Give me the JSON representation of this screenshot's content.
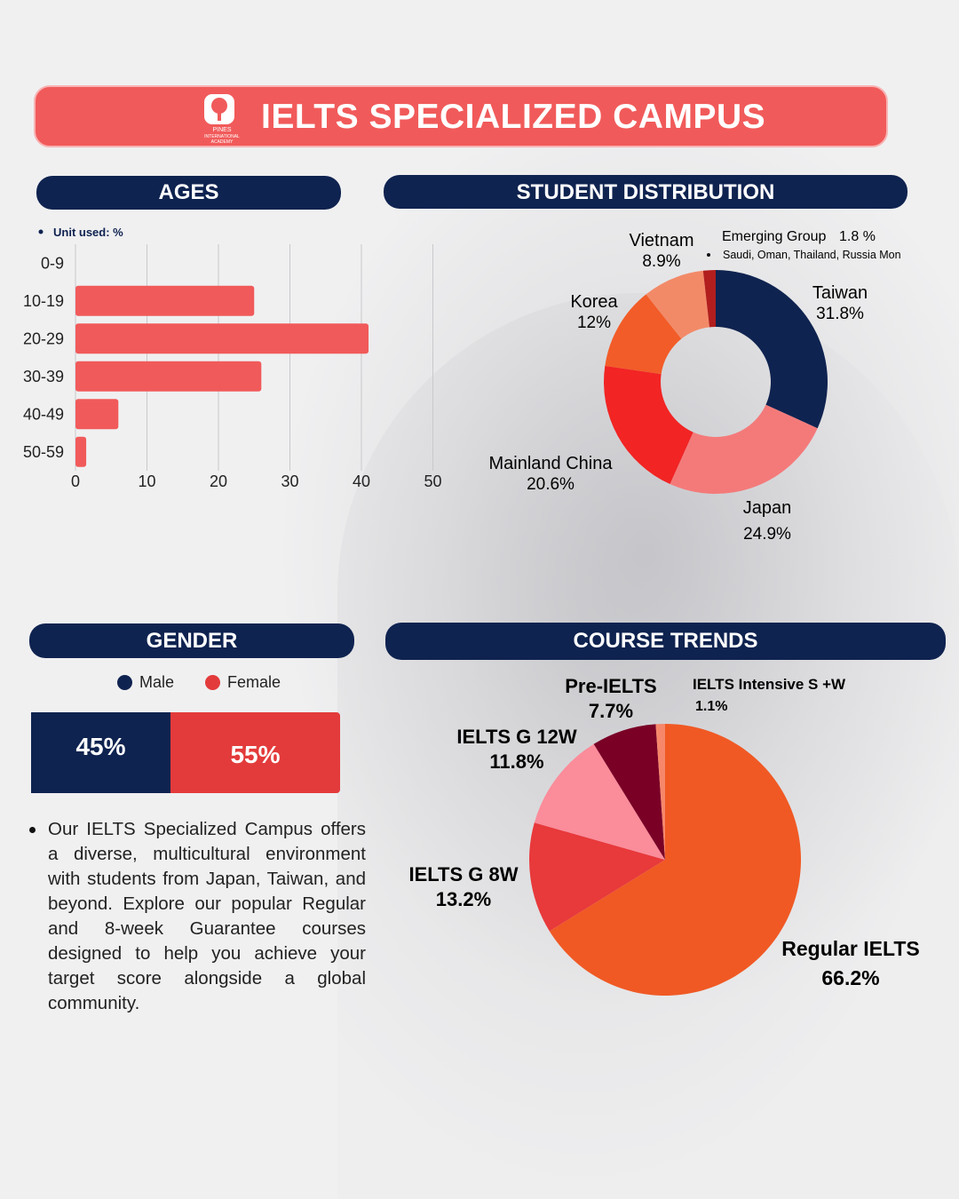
{
  "title": "IELTS SPECIALIZED CAMPUS",
  "logo_text": [
    "PINES",
    "INTERNATIONAL",
    "ACADEMY"
  ],
  "colors": {
    "navy": "#0f2350",
    "coral": "#f15a5a",
    "red": "#e33b3b"
  },
  "sections": {
    "ages": "AGES",
    "distribution": "STUDENT DISTRIBUTION",
    "gender": "GENDER",
    "course": "COURSE TRENDS"
  },
  "ages_note": "Unit used: %",
  "gender": {
    "legend_male": "Male",
    "legend_female": "Female",
    "male_pct": 45,
    "female_pct": 55,
    "male_label": "45%",
    "female_label": "55%"
  },
  "description": "Our IELTS Specialized Campus offers a diverse, multicultural environment with students from Japan, Taiwan, and beyond. Explore our popular Regular and 8-week Guarantee courses designed to help you achieve your target score alongside a global community.",
  "chart_data": [
    {
      "type": "bar",
      "orientation": "horizontal",
      "categories": [
        "0-9",
        "10-19",
        "20-29",
        "30-39",
        "40-49",
        "50-59"
      ],
      "values": [
        0,
        25,
        41,
        26,
        6,
        1.5
      ],
      "xlim": [
        0,
        50
      ],
      "xticks": [
        0,
        10,
        20,
        30,
        40,
        50
      ],
      "grid": true,
      "color": "#f15a5a"
    },
    {
      "type": "pie",
      "donut": true,
      "slices": [
        {
          "name": "Taiwan",
          "value": 31.8,
          "label": "31.8%",
          "color": "#0f2350"
        },
        {
          "name": "Japan",
          "value": 24.9,
          "label": "24.9%",
          "color": "#f47a7a"
        },
        {
          "name": "Mainland China",
          "value": 20.6,
          "label": "20.6%",
          "color": "#f22424"
        },
        {
          "name": "Korea",
          "value": 12,
          "label": "12%",
          "color": "#f25c28"
        },
        {
          "name": "Vietnam",
          "value": 8.9,
          "label": "8.9%",
          "color": "#f28a68"
        },
        {
          "name": "Emerging  Group",
          "value": 1.8,
          "label": "1.8 %",
          "color": "#b21e1e"
        }
      ],
      "note": "Saudi, Oman, Thailand, Russia  Mon"
    },
    {
      "type": "pie",
      "slices": [
        {
          "name": "Regular IELTS",
          "value": 66.2,
          "label": "66.2%",
          "color": "#f05924"
        },
        {
          "name": "IELTS G 8W",
          "value": 13.2,
          "label": "13.2%",
          "color": "#e8393b"
        },
        {
          "name": "IELTS G 12W",
          "value": 11.8,
          "label": "11.8%",
          "color": "#fb8c9a"
        },
        {
          "name": "Pre-IELTS",
          "value": 7.7,
          "label": "7.7%",
          "color": "#7a0026"
        },
        {
          "name": "IELTS Intensive S +W",
          "value": 1.1,
          "label": "1.1%",
          "color": "#f6876a"
        }
      ]
    }
  ]
}
